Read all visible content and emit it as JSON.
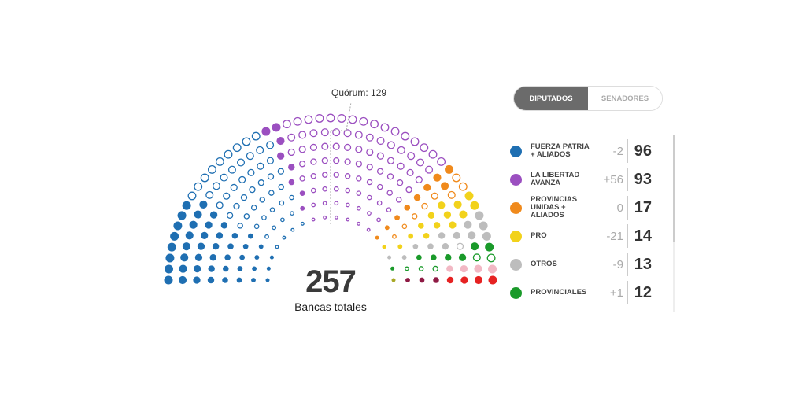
{
  "toggle": {
    "diputados": "DIPUTADOS",
    "senadores": "SENADORES"
  },
  "quorum_label": "Quórum: 129",
  "total": "257",
  "total_label": "Bancas totales",
  "chart_data": {
    "type": "hemicycle",
    "total_seats": 257,
    "quorum": 129,
    "parties": [
      {
        "name": "FUERZA PATRIA + ALIADOS",
        "color": "#1f6fb2",
        "seats": 96,
        "diff": "-2",
        "filled": 46
      },
      {
        "name": "LA LIBERTAD AVANZA",
        "color": "#9b4fc0",
        "seats": 93,
        "diff": "+56",
        "filled": 8
      },
      {
        "name": "PROVINCIAS UNIDAS + ALIADOS",
        "color": "#f08a1c",
        "seats": 17,
        "diff": "0",
        "filled": 9
      },
      {
        "name": "PRO",
        "color": "#f2d21b",
        "seats": 14,
        "diff": "-21",
        "filled": 14
      },
      {
        "name": "OTROS",
        "color": "#bdbdbd",
        "seats": 13,
        "diff": "-9",
        "filled": 12
      },
      {
        "name": "PROVINCIALES",
        "color": "#1a9a2a",
        "seats": 12,
        "diff": "+1",
        "filled": 7
      },
      {
        "color": "#f2b8c4",
        "seats": 4,
        "filled": 4
      },
      {
        "color": "#e62222",
        "seats": 4,
        "filled": 4
      },
      {
        "color": "#8e1a44",
        "seats": 3,
        "filled": 3
      },
      {
        "color": "#a8a826",
        "seats": 1,
        "filled": 1
      }
    ]
  }
}
